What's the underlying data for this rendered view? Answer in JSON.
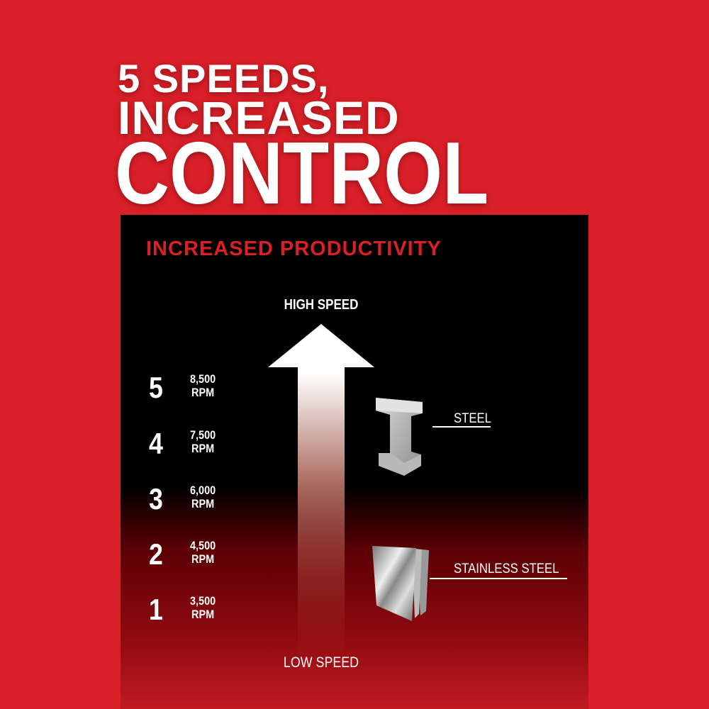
{
  "headline": {
    "line1": "5 SPEEDS,",
    "line2": "INCREASED",
    "line3": "CONTROL"
  },
  "panel": {
    "title": "INCREASED PRODUCTIVITY",
    "high_label": "HIGH SPEED",
    "low_label": "LOW SPEED",
    "speeds": [
      {
        "level": "5",
        "rpm": "8,500",
        "unit": "RPM"
      },
      {
        "level": "4",
        "rpm": "7,500",
        "unit": "RPM"
      },
      {
        "level": "3",
        "rpm": "6,000",
        "unit": "RPM"
      },
      {
        "level": "2",
        "rpm": "4,500",
        "unit": "RPM"
      },
      {
        "level": "1",
        "rpm": "3,500",
        "unit": "RPM"
      }
    ],
    "materials": [
      {
        "label": "STEEL",
        "icon": "i-beam-icon"
      },
      {
        "label": "STAINLESS STEEL",
        "icon": "metal-sheets-icon"
      }
    ]
  },
  "colors": {
    "brand_red": "#d91f27",
    "panel": "#000000"
  }
}
